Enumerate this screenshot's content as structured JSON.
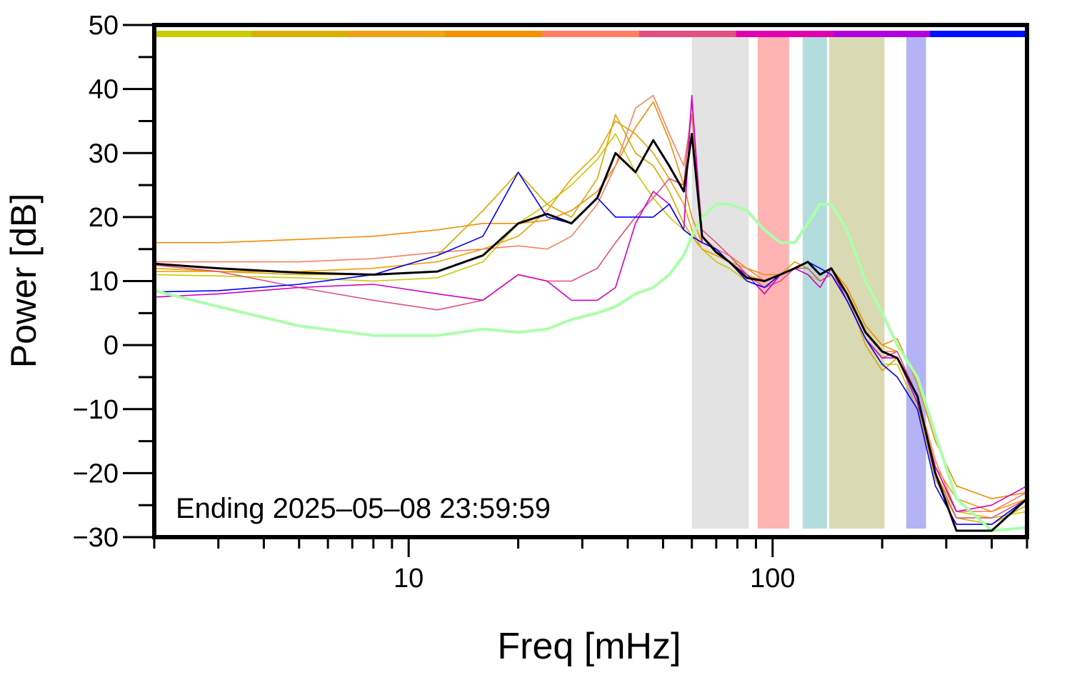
{
  "chart_data": {
    "type": "line",
    "xlabel": "Freq [mHz]",
    "ylabel": "Power [dB]",
    "annotation": "Ending 2025–05–08 23:59:59",
    "xlog": true,
    "xlim": [
      2,
      500
    ],
    "xticks": [
      10,
      100
    ],
    "xminor_ticks": [
      2,
      3,
      4,
      5,
      6,
      7,
      8,
      9,
      20,
      30,
      40,
      50,
      60,
      70,
      80,
      90,
      200,
      300,
      400,
      500
    ],
    "ylim": [
      -30,
      50
    ],
    "yticks": [
      {
        "value": -30,
        "label": "−30"
      },
      {
        "value": -20,
        "label": "−20"
      },
      {
        "value": -10,
        "label": "−10"
      },
      0,
      10,
      20,
      30,
      40,
      50
    ],
    "yminor_ticks": [
      -25,
      -15,
      -5,
      5,
      15,
      25,
      35,
      45
    ],
    "bands": [
      {
        "xlim": [
          60,
          86
        ],
        "color": "#e3e3e3"
      },
      {
        "xlim": [
          91,
          111
        ],
        "color": "#ffb3b3"
      },
      {
        "xlim": [
          121,
          141
        ],
        "color": "#b3dcdc"
      },
      {
        "xlim": [
          143,
          203
        ],
        "color": "#d9d9b3"
      },
      {
        "xlim": [
          233,
          264
        ],
        "color": "#b3b3f5"
      }
    ],
    "color_bar": [
      "#c8cc00",
      "#d8b000",
      "#f0a010",
      "#f59000",
      "#ff7f60",
      "#e05080",
      "#e000b0",
      "#b000e0",
      "#0010ff"
    ],
    "x": [
      2,
      3,
      5,
      8,
      12,
      16,
      20,
      24,
      28,
      33,
      37,
      42,
      47,
      52,
      57,
      60,
      64,
      70,
      76,
      85,
      95,
      105,
      115,
      125,
      135,
      145,
      160,
      180,
      200,
      220,
      250,
      280,
      320,
      400,
      500
    ],
    "series": [
      {
        "color": "#c8c800",
        "width": 1.6,
        "values": [
          11,
          10.8,
          10.5,
          10,
          10.5,
          13,
          19,
          22,
          25,
          29,
          33,
          27,
          23,
          20,
          18,
          17,
          15,
          13,
          12,
          10,
          9,
          11,
          12,
          11,
          10,
          11,
          7,
          1,
          -3,
          -3,
          -10,
          -20,
          -26,
          -27,
          -26
        ]
      },
      {
        "color": "#d4a800",
        "width": 1.6,
        "values": [
          12,
          11.5,
          11,
          11,
          14,
          21,
          27,
          22,
          20,
          26,
          36,
          30,
          28,
          24,
          19,
          17,
          15,
          14,
          13,
          11,
          10,
          11,
          13,
          12,
          10,
          11,
          8,
          0,
          -4,
          -2,
          -9,
          -21,
          -27,
          -28,
          -25
        ]
      },
      {
        "color": "#f0a000",
        "width": 1.6,
        "values": [
          11.5,
          11.5,
          11.5,
          12,
          13,
          15,
          17,
          21,
          26,
          30,
          35,
          33,
          30,
          26,
          22,
          18,
          15,
          14,
          13,
          12,
          10,
          11,
          12,
          13,
          11,
          12,
          9,
          3,
          0,
          -1,
          -8,
          -19,
          -24,
          -26,
          -24
        ]
      },
      {
        "color": "#f08c00",
        "width": 1.6,
        "values": [
          16,
          16,
          16.5,
          17,
          18,
          19,
          19,
          19.5,
          21,
          24,
          28,
          34,
          38,
          32,
          25,
          20,
          16,
          15,
          14,
          12,
          11,
          11,
          12,
          13,
          11,
          12,
          9,
          3,
          0,
          1,
          -6,
          -15,
          -22,
          -24,
          -23
        ]
      },
      {
        "color": "#f88060",
        "width": 1.6,
        "values": [
          13,
          13,
          13,
          13.5,
          14.5,
          15,
          15.5,
          15,
          17,
          22,
          28,
          37,
          39,
          33,
          28,
          36,
          17,
          15,
          14,
          12,
          10,
          11,
          12,
          13,
          11,
          12,
          8,
          2,
          -1,
          -1,
          -8,
          -18,
          -26,
          -26,
          -23
        ]
      },
      {
        "color": "#e05080",
        "width": 1.6,
        "values": [
          12.5,
          11.5,
          9,
          7,
          5.5,
          7,
          11,
          10,
          10,
          12,
          16,
          20,
          23,
          26,
          25,
          38,
          18,
          16,
          14,
          11,
          9,
          10,
          12,
          12,
          10,
          11,
          7,
          1,
          -2,
          -1,
          -8,
          -20,
          -27,
          -27,
          -24
        ]
      },
      {
        "color": "#d000c0",
        "width": 1.6,
        "values": [
          7.5,
          8,
          9,
          9.5,
          8,
          7,
          11,
          10,
          7,
          7,
          9,
          19,
          24,
          22,
          18,
          39,
          16,
          15,
          13,
          11,
          8,
          11,
          12,
          11,
          9,
          12,
          7,
          1,
          -2,
          -2,
          -9,
          -19,
          -26,
          -25,
          -22
        ]
      },
      {
        "color": "#0000ff",
        "width": 1.6,
        "values": [
          8.3,
          8.5,
          9.5,
          11,
          14,
          17,
          27,
          20,
          19,
          23,
          20,
          20,
          20,
          22,
          18,
          17,
          16,
          15,
          13,
          10,
          9,
          11,
          12,
          13,
          12,
          11,
          7,
          1,
          -3,
          -5,
          -10,
          -22,
          -28,
          -28,
          -24
        ]
      },
      {
        "color": "#aaffaa",
        "width": 4,
        "values": [
          8.5,
          6,
          3,
          1.5,
          1.5,
          2.5,
          2,
          2.5,
          4,
          5,
          6,
          8,
          9,
          11,
          14,
          17,
          20,
          22,
          22,
          21,
          18,
          16,
          16,
          19,
          22,
          22,
          18,
          10,
          5,
          0,
          -5,
          -14,
          -24,
          -29,
          -28.5
        ]
      },
      {
        "color": "#000000",
        "width": 3,
        "values": [
          12.7,
          12,
          11.3,
          11,
          11.5,
          14,
          19,
          20.5,
          19,
          23,
          30,
          27,
          32,
          28,
          24,
          33,
          17,
          14.5,
          13,
          10.5,
          10,
          11,
          12,
          13,
          11,
          12,
          8,
          2,
          -1,
          -2,
          -8,
          -20,
          -29,
          -29,
          -24
        ]
      }
    ]
  }
}
